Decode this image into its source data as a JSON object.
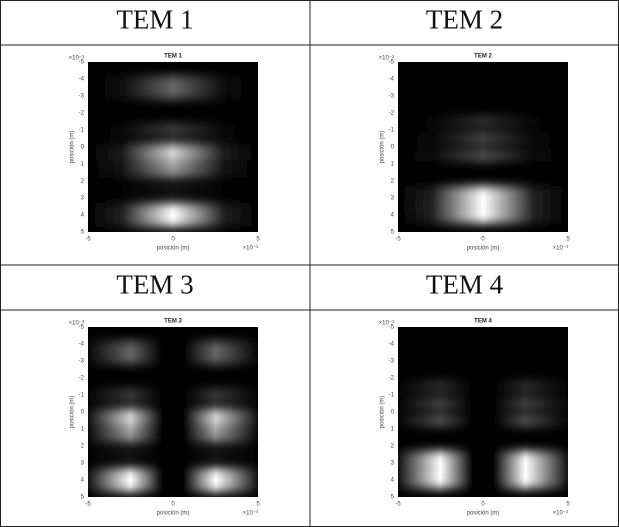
{
  "table": {
    "headers": [
      [
        "TEM 1",
        "TEM 2"
      ],
      [
        "TEM 3",
        "TEM 4"
      ]
    ]
  },
  "plots": [
    {
      "title": "TEM 1"
    },
    {
      "title": "TEM 2"
    },
    {
      "title": "TEM 3"
    },
    {
      "title": "TEM 4"
    }
  ],
  "axes": {
    "xlabel": "posición (m)",
    "ylabel": "posición (m)",
    "yticks": [
      "-5",
      "-4",
      "-3",
      "-2",
      "-1",
      "0",
      "1",
      "2",
      "3",
      "4",
      "5"
    ],
    "xticks": [
      "-5",
      "0",
      "5"
    ],
    "exponent": "×10⁻³"
  }
}
